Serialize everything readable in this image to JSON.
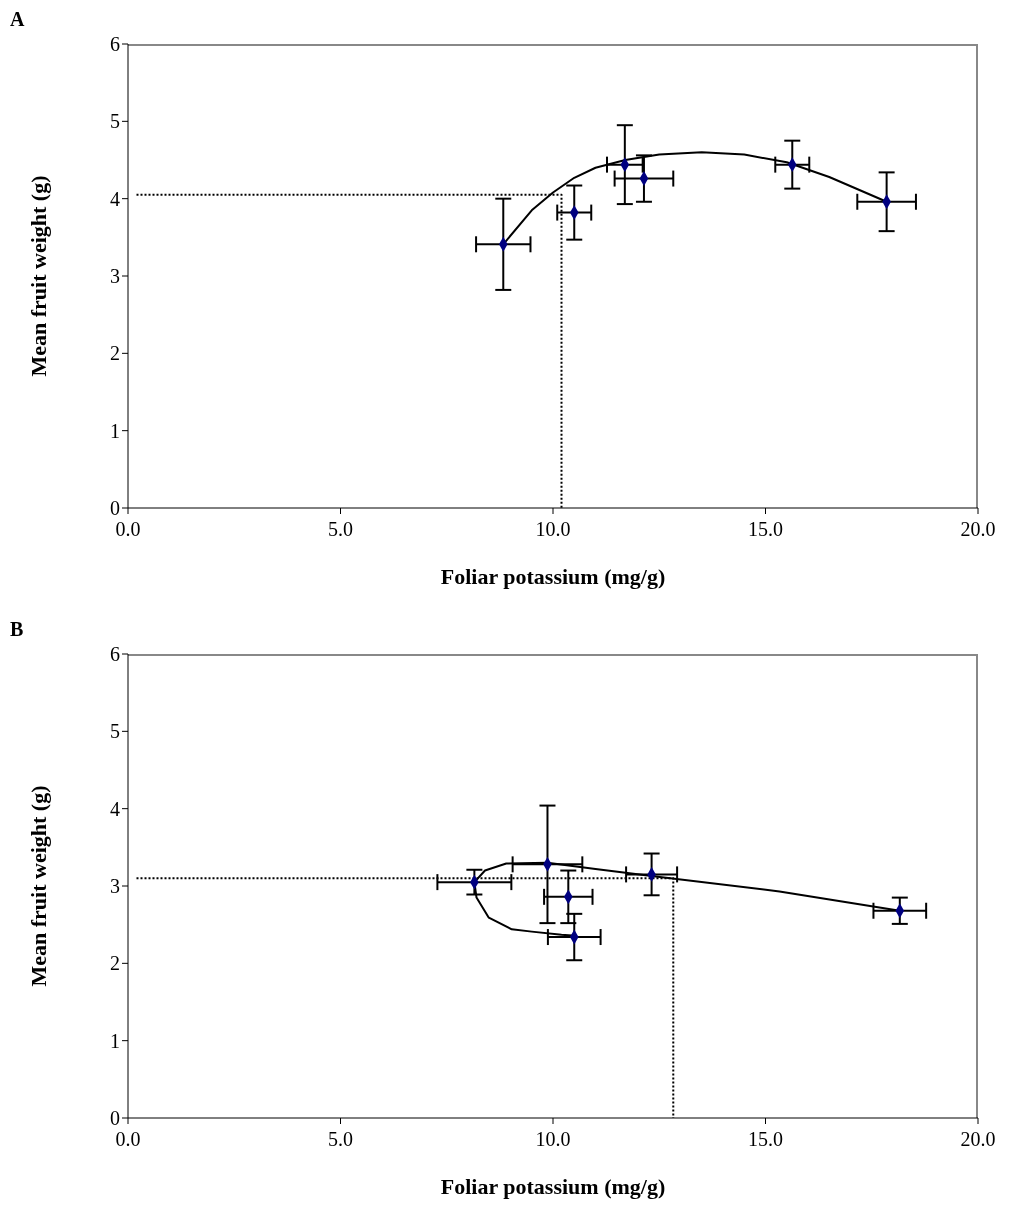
{
  "chart_data": [
    {
      "type": "scatter",
      "title": "A",
      "xlabel": "Foliar potassium (mg/g)",
      "ylabel": "Mean fruit weight (g)",
      "xlim": [
        0,
        20
      ],
      "ylim": [
        0,
        6
      ],
      "xticks": [
        {
          "value": 0,
          "label": "0.0"
        },
        {
          "value": 5,
          "label": "5.0"
        },
        {
          "value": 10,
          "label": "10.0"
        },
        {
          "value": 15,
          "label": "15.0"
        },
        {
          "value": 20,
          "label": "20.0"
        }
      ],
      "yticks": [
        0,
        1,
        2,
        3,
        4,
        5,
        6
      ],
      "grid": false,
      "series": [
        {
          "type": "scatter",
          "color": "#000080",
          "marker": "diamond",
          "x": [
            8.83,
            10.5,
            11.69,
            12.14,
            15.63,
            17.85
          ],
          "values": [
            3.41,
            3.82,
            4.44,
            4.26,
            4.44,
            3.96
          ],
          "errors": [
            0.59,
            0.35,
            0.51,
            0.3,
            0.31,
            0.38
          ],
          "xerrors": [
            0.64,
            0.4,
            0.42,
            0.69,
            0.4,
            0.69
          ]
        },
        {
          "type": "line",
          "color": "#000000",
          "marker": "none",
          "line_style": "solid",
          "x": [
            8.83,
            9.5,
            10,
            10.5,
            11,
            11.7,
            12.5,
            13.5,
            14.5,
            15.5,
            16.5,
            17.85
          ],
          "values": [
            3.41,
            3.85,
            4.08,
            4.27,
            4.4,
            4.5,
            4.57,
            4.6,
            4.57,
            4.47,
            4.28,
            3.96
          ]
        },
        {
          "type": "line",
          "color": "#000000",
          "marker": "none",
          "line_style": "dotted",
          "x": [
            0.2,
            10.2,
            10.2
          ],
          "values": [
            4.05,
            4.05,
            0
          ]
        }
      ]
    },
    {
      "type": "scatter",
      "title": "B",
      "xlabel": "Foliar potassium (mg/g)",
      "ylabel": "Mean fruit weight (g)",
      "xlim": [
        0,
        20
      ],
      "ylim": [
        0,
        6
      ],
      "xticks": [
        {
          "value": 0,
          "label": "0.0"
        },
        {
          "value": 5,
          "label": "5.0"
        },
        {
          "value": 10,
          "label": "10.0"
        },
        {
          "value": 15,
          "label": "15.0"
        },
        {
          "value": 20,
          "label": "20.0"
        }
      ],
      "yticks": [
        0,
        1,
        2,
        3,
        4,
        5,
        6
      ],
      "grid": false,
      "series": [
        {
          "type": "scatter",
          "color": "#000080",
          "marker": "diamond",
          "x": [
            8.15,
            9.87,
            10.36,
            10.5,
            12.32,
            18.16
          ],
          "values": [
            3.05,
            3.28,
            2.86,
            2.34,
            3.15,
            2.68
          ],
          "errors": [
            0.16,
            0.76,
            0.34,
            0.3,
            0.27,
            0.17
          ],
          "xerrors": [
            0.87,
            0.82,
            0.57,
            0.62,
            0.6,
            0.62
          ]
        },
        {
          "type": "line",
          "color": "#000000",
          "marker": "none",
          "line_style": "solid",
          "x": [
            10.45,
            10.2,
            9.5,
            9.03,
            8.49,
            8.2,
            8.15,
            8.4,
            8.9,
            9.87,
            11,
            12.32,
            15.33,
            18.16
          ],
          "values": [
            2.36,
            2.37,
            2.41,
            2.44,
            2.59,
            2.85,
            3.05,
            3.2,
            3.29,
            3.3,
            3.22,
            3.13,
            2.93,
            2.68
          ]
        },
        {
          "type": "line",
          "color": "#000000",
          "marker": "none",
          "line_style": "dotted",
          "x": [
            0.2,
            12.83,
            12.83
          ],
          "values": [
            3.1,
            3.1,
            0
          ]
        }
      ]
    }
  ]
}
